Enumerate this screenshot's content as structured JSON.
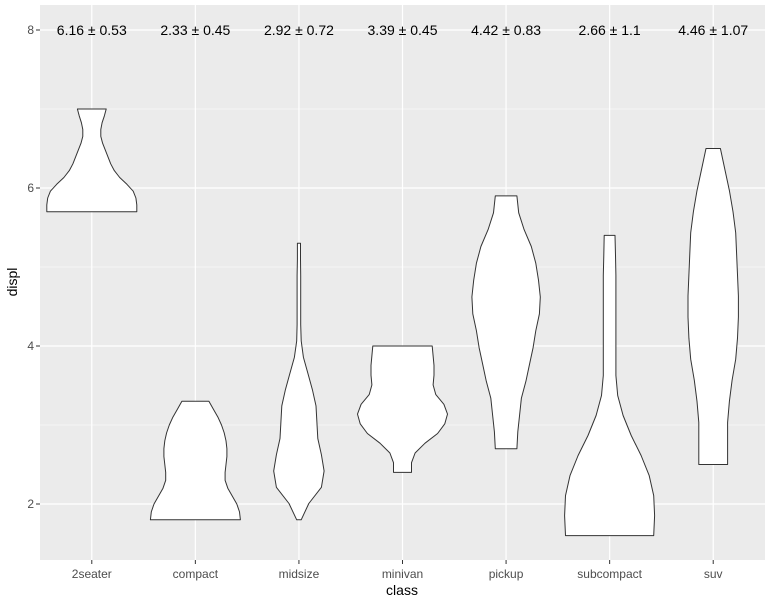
{
  "chart_data": {
    "type": "violin",
    "xlabel": "class",
    "ylabel": "displ",
    "ylim": [
      1.3,
      8.3
    ],
    "yticks": [
      2,
      4,
      6,
      8
    ],
    "grid": true,
    "categories": [
      "2seater",
      "compact",
      "midsize",
      "minivan",
      "pickup",
      "subcompact",
      "suv"
    ],
    "annotations": [
      "6.16 ± 0.53",
      "2.33 ± 0.45",
      "2.92 ± 0.72",
      "3.39 ± 0.45",
      "4.42 ± 0.83",
      "2.66 ± 1.1",
      "4.46 ± 1.07"
    ],
    "annotation_y": 8,
    "violins": [
      {
        "category": "2seater",
        "min": 5.7,
        "max": 7.0
      },
      {
        "category": "compact",
        "min": 1.8,
        "max": 3.3
      },
      {
        "category": "midsize",
        "min": 1.8,
        "max": 5.3
      },
      {
        "category": "minivan",
        "min": 2.4,
        "max": 4.0
      },
      {
        "category": "pickup",
        "min": 2.7,
        "max": 5.9
      },
      {
        "category": "subcompact",
        "min": 1.6,
        "max": 5.4
      },
      {
        "category": "suv",
        "min": 2.5,
        "max": 6.5
      }
    ],
    "colors": {
      "panel": "#ebebeb",
      "grid": "#ffffff",
      "violin_fill": "#ffffff",
      "violin_stroke": "#333333",
      "tick_text": "#4d4d4d",
      "title_text": "#000000"
    }
  }
}
